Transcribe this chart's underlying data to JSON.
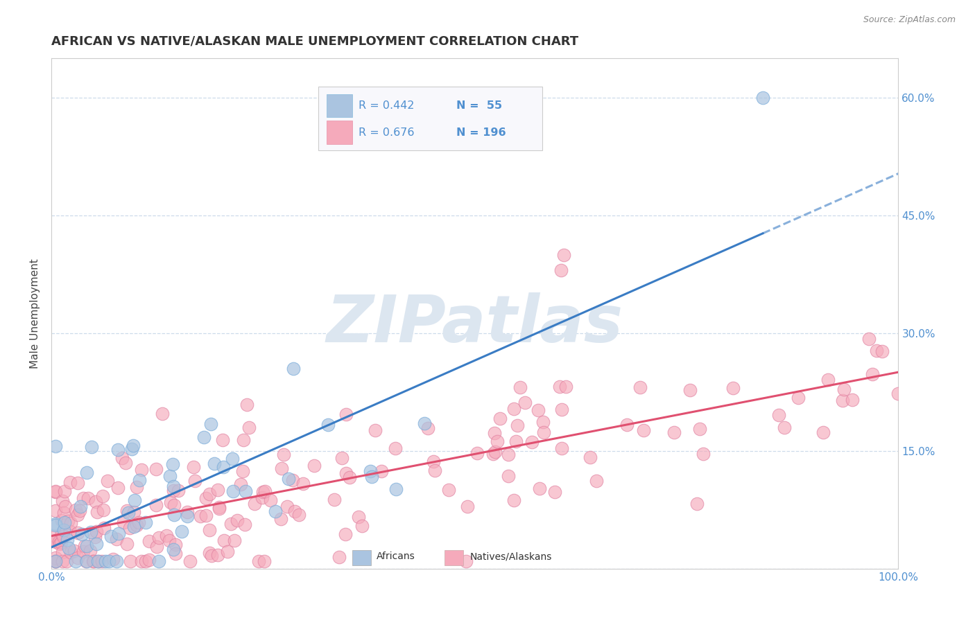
{
  "title": "AFRICAN VS NATIVE/ALASKAN MALE UNEMPLOYMENT CORRELATION CHART",
  "source": "Source: ZipAtlas.com",
  "ylabel": "Male Unemployment",
  "xlim": [
    0,
    1
  ],
  "ylim": [
    0,
    0.65
  ],
  "ytick_values": [
    0,
    0.15,
    0.3,
    0.45,
    0.6
  ],
  "ytick_labels": [
    "",
    "15.0%",
    "30.0%",
    "45.0%",
    "60.0%"
  ],
  "xtick_labels": [
    "0.0%",
    "",
    "",
    "",
    "",
    "",
    "",
    "",
    "",
    "",
    "100.0%"
  ],
  "legend_r_african": "R = 0.442",
  "legend_n_african": "N =  55",
  "legend_r_native": "R = 0.676",
  "legend_n_native": "N = 196",
  "african_color": "#aac4e0",
  "native_color": "#f5aabb",
  "african_line_color": "#3a7cc4",
  "native_line_color": "#e05070",
  "background_color": "#ffffff",
  "watermark": "ZIPatlas",
  "watermark_color": "#dce6f0",
  "tick_color": "#5090d0",
  "grid_color": "#c8d8e8",
  "title_color": "#333333",
  "source_color": "#888888"
}
